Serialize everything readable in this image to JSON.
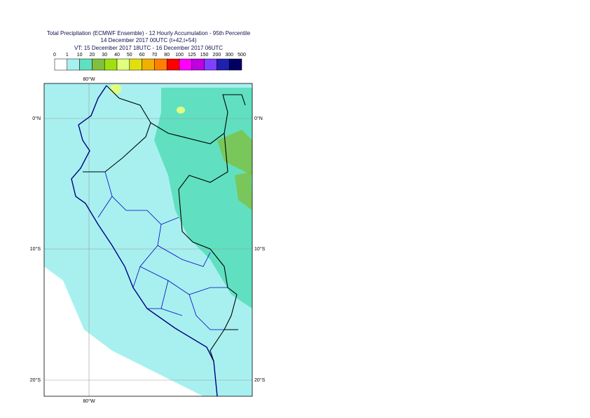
{
  "title": {
    "line1": "Total Precipitation (ECMWF Ensemble) - 12 Hourly Accumulation - 95th Percentile",
    "line2": "14 December 2017 00UTC (t+42,t+54)",
    "line3": "VT: 15 December 2017 18UTC - 16 December 2017 06UTC"
  },
  "legend": {
    "levels": [
      0,
      1,
      10,
      20,
      30,
      40,
      50,
      60,
      70,
      80,
      100,
      125,
      150,
      200,
      300,
      500
    ],
    "colors": [
      "#ffffff",
      "#a8f0f0",
      "#60e0c0",
      "#80c040",
      "#a0e010",
      "#e0ff80",
      "#e0e010",
      "#f0b000",
      "#ff8000",
      "#ff0000",
      "#ff00ff",
      "#c000e0",
      "#8040ff",
      "#2020b0",
      "#000060"
    ]
  },
  "map": {
    "lon_labels": [
      "80°W"
    ],
    "lat_labels": [
      "0°N",
      "10°S",
      "20°S"
    ]
  }
}
